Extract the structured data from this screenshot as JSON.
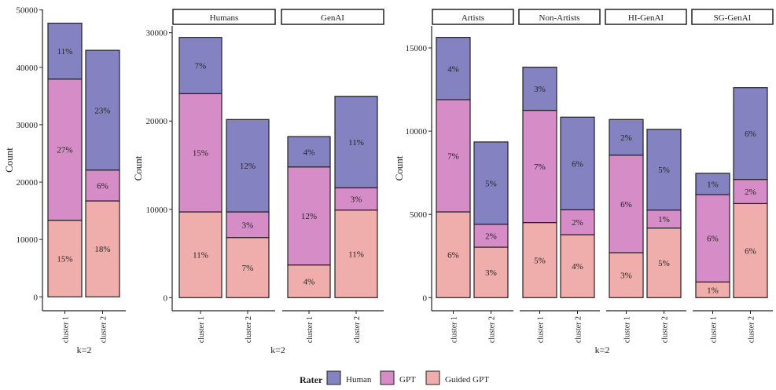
{
  "chart_data": [
    {
      "type": "bar",
      "stacked": true,
      "facets": [
        ""
      ],
      "categories": [
        "cluster 1",
        "cluster 2"
      ],
      "xlabel": "k=2",
      "ylabel": "Count",
      "ylim": [
        -2460,
        50000
      ],
      "yticks": [
        0,
        10000,
        20000,
        30000,
        40000,
        50000
      ],
      "series": [
        {
          "name": "Guided GPT",
          "values": [
            [
              13350,
              16720
            ]
          ],
          "labels": [
            [
              "15%",
              "18%"
            ]
          ]
        },
        {
          "name": "GPT",
          "values": [
            [
              24600,
              5380
            ]
          ],
          "labels": [
            [
              "27%",
              "6%"
            ]
          ]
        },
        {
          "name": "Human",
          "values": [
            [
              9750,
              20870
            ]
          ],
          "labels": [
            [
              "11%",
              "23%"
            ]
          ]
        }
      ]
    },
    {
      "type": "bar",
      "stacked": true,
      "facets": [
        "Humans",
        "GenAI"
      ],
      "categories": [
        "cluster 1",
        "cluster 2"
      ],
      "xlabel": "k=2",
      "ylabel": "Count",
      "ylim": [
        -1480,
        31000
      ],
      "yticks": [
        0,
        10000,
        20000,
        30000
      ],
      "series": [
        {
          "name": "Guided GPT",
          "values": [
            [
              9710,
              6810
            ],
            [
              3700,
              9920
            ]
          ],
          "labels": [
            [
              "11%",
              "7%"
            ],
            [
              "4%",
              "11%"
            ]
          ]
        },
        {
          "name": "GPT",
          "values": [
            [
              13390,
              2900
            ],
            [
              11100,
              2520
            ]
          ],
          "labels": [
            [
              "15%",
              "3%"
            ],
            [
              "12%",
              "3%"
            ]
          ]
        },
        {
          "name": "Human",
          "values": [
            [
              6370,
              10460
            ],
            [
              3440,
              10360
            ]
          ],
          "labels": [
            [
              "7%",
              "12%"
            ],
            [
              "4%",
              "11%"
            ]
          ]
        }
      ]
    },
    {
      "type": "bar",
      "stacked": true,
      "facets": [
        "Artists",
        "Non-Artists",
        "HI-GenAI",
        "SG-GenAI"
      ],
      "categories": [
        "cluster 1",
        "cluster 2"
      ],
      "xlabel": "k=2",
      "ylabel": "Count",
      "ylim": [
        -790,
        16420
      ],
      "yticks": [
        0,
        5000,
        10000,
        15000
      ],
      "series": [
        {
          "name": "Guided GPT",
          "values": [
            [
              5150,
              3030
            ],
            [
              4510,
              3780
            ],
            [
              2700,
              4180
            ],
            [
              940,
              5650
            ]
          ],
          "labels": [
            [
              "6%",
              "3%"
            ],
            [
              "5%",
              "4%"
            ],
            [
              "3%",
              "5%"
            ],
            [
              "1%",
              "6%"
            ]
          ]
        },
        {
          "name": "GPT",
          "values": [
            [
              6740,
              1380
            ],
            [
              6740,
              1500
            ],
            [
              5860,
              1080
            ],
            [
              5250,
              1450
            ]
          ],
          "labels": [
            [
              "7%",
              "2%"
            ],
            [
              "7%",
              "2%"
            ],
            [
              "6%",
              "1%"
            ],
            [
              "6%",
              "2%"
            ]
          ]
        },
        {
          "name": "Human",
          "values": [
            [
              3740,
              4940
            ],
            [
              2590,
              5560
            ],
            [
              2140,
              4850
            ],
            [
              1280,
              5510
            ]
          ],
          "labels": [
            [
              "4%",
              "5%"
            ],
            [
              "3%",
              "6%"
            ],
            [
              "2%",
              "5%"
            ],
            [
              "1%",
              "6%"
            ]
          ]
        }
      ]
    }
  ],
  "legend": {
    "title": "Rater",
    "position": "bottom",
    "items": [
      {
        "label": "Human",
        "color": "#8582c2"
      },
      {
        "label": "GPT",
        "color": "#d68cc7"
      },
      {
        "label": "Guided GPT",
        "color": "#efaeab"
      }
    ]
  }
}
